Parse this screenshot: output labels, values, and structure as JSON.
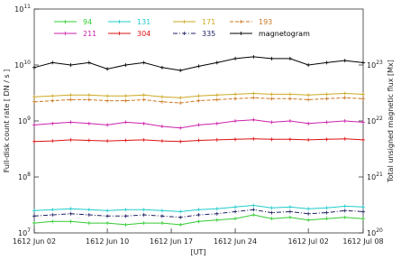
{
  "chart_data": {
    "type": "line",
    "ylabel": "Full-disk count rate [ DN / s ]",
    "y2label": "Total unsigned magnetic flux [Mx]",
    "xlabel": "[UT]",
    "log_scale": true,
    "x": [
      "1612-06-02",
      "1612-06-04",
      "1612-06-06",
      "1612-06-08",
      "1612-06-10",
      "1612-06-12",
      "1612-06-14",
      "1612-06-16",
      "1612-06-18",
      "1612-06-20",
      "1612-06-22",
      "1612-06-24",
      "1612-06-26",
      "1612-06-28",
      "1612-06-30",
      "1612-07-02",
      "1612-07-04",
      "1612-07-06",
      "1612-07-08"
    ],
    "xlim": [
      "1612-06-02",
      "1612-07-08"
    ],
    "xticks": [
      {
        "value": "1612-06-02",
        "label": "1612 Jun 02"
      },
      {
        "value": "1612-06-10",
        "label": "1612 Jun 10"
      },
      {
        "value": "1612-06-17",
        "label": "1612 Jun 17"
      },
      {
        "value": "1612-06-24",
        "label": "1612 Jun 24"
      },
      {
        "value": "1612-07-02",
        "label": "1612 Jul 02"
      },
      {
        "value": "1612-07-08",
        "label": "1612 Jul 08"
      }
    ],
    "ylim": [
      10000000,
      100000000000
    ],
    "yticks": [
      {
        "value": 10000000,
        "label": "10",
        "sup": "7"
      },
      {
        "value": 100000000,
        "label": "10",
        "sup": "8"
      },
      {
        "value": 1000000000,
        "label": "10",
        "sup": "9"
      },
      {
        "value": 10000000000,
        "label": "10",
        "sup": "10"
      },
      {
        "value": 100000000000,
        "label": "10",
        "sup": "11"
      }
    ],
    "y2lim": [
      1e+20,
      1e+24
    ],
    "y2ticks": [
      {
        "value": 1e+20,
        "label": "10",
        "sup": "20"
      },
      {
        "value": 1e+21,
        "label": "10",
        "sup": "21"
      },
      {
        "value": 1e+22,
        "label": "10",
        "sup": "22"
      },
      {
        "value": 1e+23,
        "label": "10",
        "sup": "23"
      }
    ],
    "series": [
      {
        "name": "94",
        "color": "#33cc33",
        "dash": "none",
        "values": [
          15000000.0,
          16000000.0,
          16000000.0,
          15000000.0,
          15000000.0,
          14000000.0,
          15000000.0,
          15000000.0,
          14000000.0,
          16000000.0,
          17000000.0,
          18000000.0,
          21000000.0,
          18000000.0,
          19000000.0,
          17000000.0,
          18000000.0,
          19000000.0,
          18000000.0
        ]
      },
      {
        "name": "131",
        "color": "#22cccc",
        "dash": "none",
        "values": [
          25000000.0,
          26000000.0,
          27000000.0,
          26000000.0,
          25000000.0,
          26000000.0,
          26000000.0,
          25000000.0,
          24000000.0,
          26000000.0,
          27000000.0,
          29000000.0,
          31000000.0,
          28000000.0,
          29000000.0,
          27000000.0,
          28000000.0,
          30000000.0,
          29000000.0
        ]
      },
      {
        "name": "171",
        "color": "#ccaa22",
        "dash": "none",
        "values": [
          2700000000.0,
          2800000000.0,
          2900000000.0,
          2900000000.0,
          2800000000.0,
          2800000000.0,
          2900000000.0,
          2700000000.0,
          2600000000.0,
          2800000000.0,
          2900000000.0,
          3000000000.0,
          3100000000.0,
          3000000000.0,
          3000000000.0,
          2900000000.0,
          3000000000.0,
          3100000000.0,
          3000000000.0
        ]
      },
      {
        "name": "193",
        "color": "#cc7722",
        "dash": "4,2",
        "values": [
          2200000000.0,
          2300000000.0,
          2400000000.0,
          2400000000.0,
          2300000000.0,
          2300000000.0,
          2400000000.0,
          2200000000.0,
          2100000000.0,
          2300000000.0,
          2400000000.0,
          2500000000.0,
          2600000000.0,
          2500000000.0,
          2500000000.0,
          2400000000.0,
          2500000000.0,
          2600000000.0,
          2500000000.0
        ]
      },
      {
        "name": "211",
        "color": "#cc22aa",
        "dash": "none",
        "values": [
          850000000.0,
          900000000.0,
          950000000.0,
          900000000.0,
          850000000.0,
          950000000.0,
          900000000.0,
          800000000.0,
          750000000.0,
          850000000.0,
          900000000.0,
          1000000000.0,
          1050000000.0,
          950000000.0,
          1000000000.0,
          900000000.0,
          950000000.0,
          1000000000.0,
          950000000.0
        ]
      },
      {
        "name": "304",
        "color": "#dd1111",
        "dash": "none",
        "values": [
          430000000.0,
          440000000.0,
          460000000.0,
          450000000.0,
          440000000.0,
          450000000.0,
          460000000.0,
          440000000.0,
          430000000.0,
          450000000.0,
          460000000.0,
          470000000.0,
          480000000.0,
          470000000.0,
          470000000.0,
          460000000.0,
          470000000.0,
          480000000.0,
          460000000.0
        ]
      },
      {
        "name": "335",
        "color": "#222266",
        "dash": "5,2,1,2",
        "values": [
          20000000.0,
          21000000.0,
          22000000.0,
          21000000.0,
          20000000.0,
          20000000.0,
          21000000.0,
          20000000.0,
          19000000.0,
          21000000.0,
          22000000.0,
          24000000.0,
          26000000.0,
          23000000.0,
          24000000.0,
          22000000.0,
          23000000.0,
          25000000.0,
          24000000.0
        ]
      },
      {
        "name": "magnetogram",
        "color": "#000000",
        "dash": "none",
        "axis": "y2",
        "values": [
          9e+22,
          1.1e+23,
          1e+23,
          1.1e+23,
          8.5e+22,
          1e+23,
          1.1e+23,
          9e+22,
          8e+22,
          9.5e+22,
          1.1e+23,
          1.3e+23,
          1.4e+23,
          1.3e+23,
          1.3e+23,
          1e+23,
          1.1e+23,
          1.2e+23,
          1.1e+23
        ]
      }
    ]
  }
}
